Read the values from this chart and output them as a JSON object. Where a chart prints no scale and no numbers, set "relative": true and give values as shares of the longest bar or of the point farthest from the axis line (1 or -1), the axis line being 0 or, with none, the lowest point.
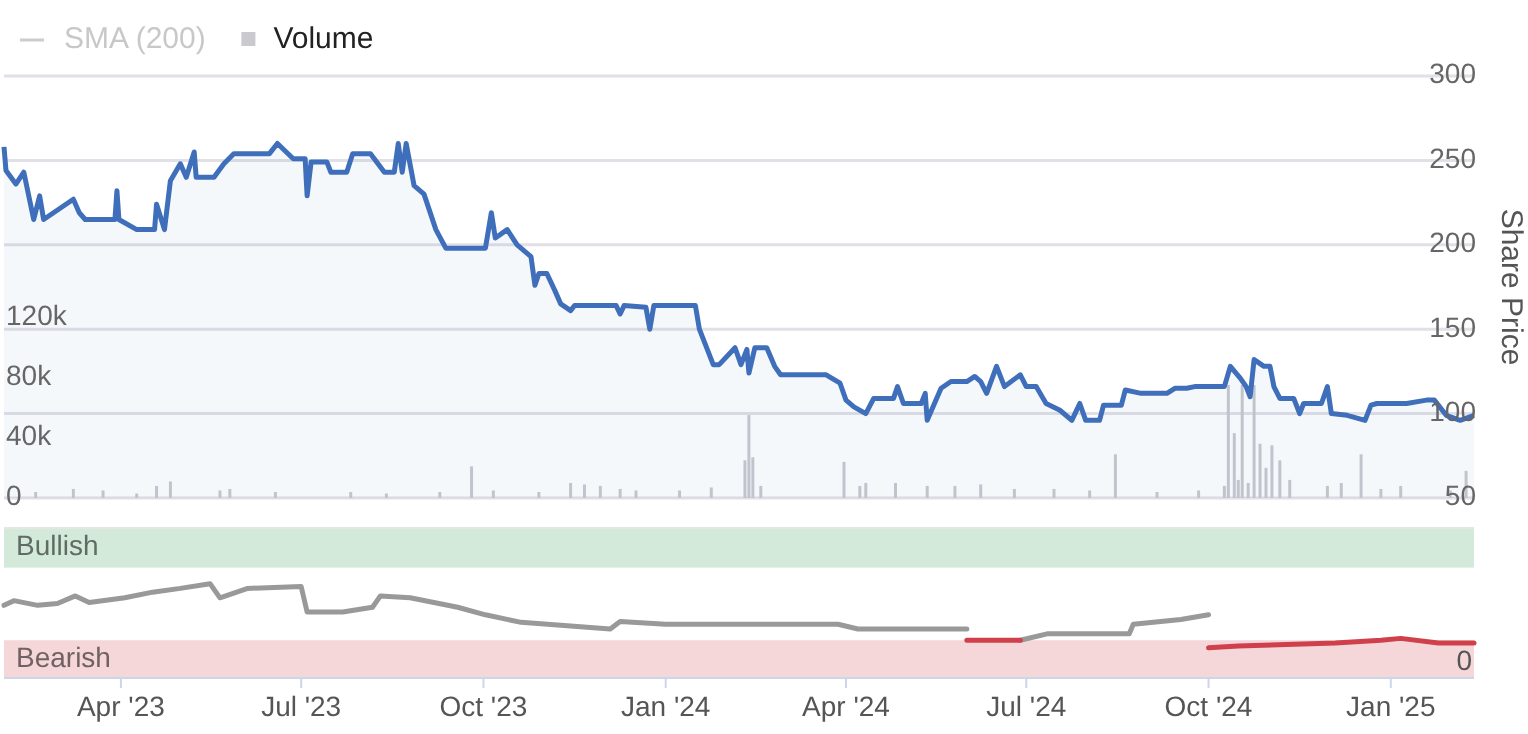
{
  "chart_data": [
    {
      "type": "area",
      "ylabel": "Share Price",
      "xlim": [
        "2023-02-01",
        "2025-02-12"
      ],
      "ylim": [
        50,
        300
      ],
      "yticks": [
        50,
        100,
        150,
        200,
        250,
        300
      ],
      "y2lim": [
        0,
        280000
      ],
      "y2ticks": [
        0,
        {
          "value": 40000,
          "label": "40k"
        },
        {
          "value": 80000,
          "label": "80k"
        },
        {
          "value": 120000,
          "label": "120k"
        }
      ],
      "grid": "y",
      "legend": "top left",
      "tick_labels": "y",
      "series": [
        {
          "name": "SMA (200)",
          "type": "line",
          "color": "#cccccc"
        },
        {
          "name": "Volume",
          "type": "bar",
          "axis": "y2",
          "color": "#c9c9cf",
          "x": [
            "2023-02-17",
            "2023-03-08",
            "2023-03-23",
            "2023-04-09",
            "2023-04-19",
            "2023-04-26",
            "2023-05-21",
            "2023-05-26",
            "2023-06-18",
            "2023-07-26",
            "2023-08-13",
            "2023-09-09",
            "2023-09-25",
            "2023-10-06",
            "2023-10-29",
            "2023-11-14",
            "2023-11-21",
            "2023-11-29",
            "2023-12-09",
            "2023-12-17",
            "2024-01-08",
            "2024-01-24",
            "2024-02-10",
            "2024-02-12",
            "2024-02-14",
            "2024-02-18",
            "2024-03-31",
            "2024-04-08",
            "2024-04-11",
            "2024-04-26",
            "2024-05-12",
            "2024-05-26",
            "2024-06-08",
            "2024-06-25",
            "2024-07-15",
            "2024-08-02",
            "2024-08-15",
            "2024-09-05",
            "2024-09-26",
            "2024-10-09",
            "2024-10-11",
            "2024-10-14",
            "2024-10-16",
            "2024-10-18",
            "2024-10-21",
            "2024-10-24",
            "2024-10-27",
            "2024-10-30",
            "2024-11-02",
            "2024-11-06",
            "2024-11-11",
            "2024-11-30",
            "2024-12-07",
            "2024-12-17",
            "2024-12-27",
            "2025-01-06",
            "2025-01-31",
            "2025-02-08"
          ],
          "values": [
            4000,
            6000,
            5000,
            3000,
            8000,
            11000,
            5000,
            6000,
            4000,
            4000,
            3000,
            4000,
            21000,
            5000,
            4000,
            10000,
            9000,
            8000,
            6000,
            5000,
            5000,
            7000,
            25000,
            55000,
            27000,
            8000,
            24000,
            8000,
            10000,
            10000,
            8000,
            8000,
            9000,
            6000,
            6000,
            5000,
            29000,
            4000,
            5000,
            8000,
            75000,
            43000,
            12000,
            75000,
            10000,
            75000,
            36000,
            20000,
            35000,
            25000,
            12000,
            8000,
            10000,
            29000,
            6000,
            8000,
            5000,
            18000
          ]
        },
        {
          "color": "#3f6fba",
          "x": [
            "2023-02-01",
            "2023-02-02",
            "2023-02-07",
            "2023-02-11",
            "2023-02-16",
            "2023-02-19",
            "2023-02-21",
            "2023-03-08",
            "2023-03-11",
            "2023-03-14",
            "2023-03-29",
            "2023-03-30",
            "2023-03-31",
            "2023-04-09",
            "2023-04-18",
            "2023-04-19",
            "2023-04-23",
            "2023-04-26",
            "2023-05-01",
            "2023-05-04",
            "2023-05-08",
            "2023-05-09",
            "2023-05-18",
            "2023-05-23",
            "2023-05-28",
            "2023-06-15",
            "2023-06-19",
            "2023-06-27",
            "2023-07-03",
            "2023-07-04",
            "2023-07-06",
            "2023-07-14",
            "2023-07-16",
            "2023-07-24",
            "2023-07-27",
            "2023-08-05",
            "2023-08-12",
            "2023-08-17",
            "2023-08-19",
            "2023-08-21",
            "2023-08-23",
            "2023-08-27",
            "2023-09-01",
            "2023-09-07",
            "2023-09-12",
            "2023-10-02",
            "2023-10-05",
            "2023-10-07",
            "2023-10-13",
            "2023-10-18",
            "2023-10-25",
            "2023-10-27",
            "2023-10-29",
            "2023-11-02",
            "2023-11-06",
            "2023-11-09",
            "2023-11-14",
            "2023-11-16",
            "2023-12-07",
            "2023-12-09",
            "2023-12-11",
            "2023-12-22",
            "2023-12-24",
            "2023-12-26",
            "2024-01-16",
            "2024-01-18",
            "2024-01-25",
            "2024-01-28",
            "2024-02-05",
            "2024-02-08",
            "2024-02-11",
            "2024-02-12",
            "2024-02-15",
            "2024-02-21",
            "2024-02-25",
            "2024-02-28",
            "2024-03-22",
            "2024-03-29",
            "2024-04-01",
            "2024-04-05",
            "2024-04-11",
            "2024-04-15",
            "2024-04-25",
            "2024-04-27",
            "2024-04-30",
            "2024-05-09",
            "2024-05-11",
            "2024-05-12",
            "2024-05-19",
            "2024-05-24",
            "2024-06-01",
            "2024-06-05",
            "2024-06-08",
            "2024-06-11",
            "2024-06-16",
            "2024-06-20",
            "2024-06-28",
            "2024-07-01",
            "2024-07-06",
            "2024-07-11",
            "2024-07-18",
            "2024-07-24",
            "2024-07-28",
            "2024-07-31",
            "2024-08-07",
            "2024-08-09",
            "2024-08-18",
            "2024-08-20",
            "2024-08-28",
            "2024-09-10",
            "2024-09-14",
            "2024-09-20",
            "2024-09-24",
            "2024-10-09",
            "2024-10-12",
            "2024-10-17",
            "2024-10-20",
            "2024-10-22",
            "2024-10-24",
            "2024-10-29",
            "2024-11-01",
            "2024-11-03",
            "2024-11-06",
            "2024-11-13",
            "2024-11-16",
            "2024-11-18",
            "2024-11-27",
            "2024-11-30",
            "2024-12-02",
            "2024-12-10",
            "2024-12-19",
            "2024-12-22",
            "2024-12-25",
            "2025-01-09",
            "2025-01-19",
            "2025-01-23",
            "2025-01-29",
            "2025-02-05",
            "2025-02-12"
          ],
          "values": [
            258,
            244,
            236,
            243,
            215,
            229,
            215,
            227,
            219,
            215,
            215,
            232,
            215,
            209,
            209,
            224,
            209,
            238,
            248,
            240,
            255,
            240,
            240,
            248,
            254,
            254,
            260,
            251,
            251,
            229,
            249,
            249,
            243,
            243,
            254,
            254,
            243,
            243,
            260,
            243,
            260,
            235,
            230,
            209,
            198,
            198,
            219,
            204,
            209,
            200,
            193,
            176,
            183,
            183,
            173,
            165,
            161,
            164,
            164,
            159,
            164,
            163,
            150,
            164,
            164,
            150,
            129,
            129,
            139,
            129,
            138,
            124,
            139,
            139,
            128,
            123,
            123,
            118,
            108,
            104,
            100,
            109,
            109,
            116,
            106,
            106,
            112,
            96,
            115,
            119,
            119,
            122,
            119,
            112,
            128,
            116,
            123,
            116,
            116,
            106,
            102,
            96,
            106,
            96,
            96,
            105,
            105,
            114,
            112,
            112,
            115,
            115,
            116,
            116,
            128,
            121,
            116,
            110,
            132,
            128,
            128,
            116,
            109,
            109,
            100,
            106,
            106,
            116,
            100,
            99,
            96,
            105,
            106,
            106,
            108,
            108,
            99,
            96,
            99
          ]
        }
      ]
    },
    {
      "type": "line",
      "relative": true,
      "xlim": [
        "2023-02-01",
        "2025-02-12"
      ],
      "xticks": [
        {
          "value": "2023-04-01",
          "label": "Apr '23"
        },
        {
          "value": "2023-07-01",
          "label": "Jul '23"
        },
        {
          "value": "2023-10-01",
          "label": "Oct '23"
        },
        {
          "value": "2024-01-01",
          "label": "Jan '24"
        },
        {
          "value": "2024-04-01",
          "label": "Apr '24"
        },
        {
          "value": "2024-07-01",
          "label": "Jul '24"
        },
        {
          "value": "2024-10-01",
          "label": "Oct '24"
        },
        {
          "value": "2025-01-01",
          "label": "Jan '25"
        }
      ],
      "tick_labels": "x",
      "annotations": [
        "0"
      ],
      "bands": [
        {
          "axis": "y",
          "from": 1.17,
          "to": 1.59,
          "label": "Bullish",
          "color": "#d3eadb"
        },
        {
          "axis": "y",
          "from": 0,
          "to": 0.4,
          "label": "Bearish",
          "color": "#f5d6d9"
        }
      ],
      "series": [
        {
          "color": "#999999",
          "x": [
            "2023-02-01",
            "2023-02-06",
            "2023-02-18",
            "2023-02-28",
            "2023-03-09",
            "2023-03-16",
            "2023-04-03",
            "2023-04-17",
            "2023-05-01",
            "2023-05-16",
            "2023-05-21",
            "2023-06-04",
            "2023-07-01",
            "2023-07-04",
            "2023-07-22",
            "2023-08-06",
            "2023-08-10",
            "2023-08-25",
            "2023-09-18",
            "2023-10-02",
            "2023-10-20",
            "2023-12-04",
            "2023-12-09",
            "2024-01-01",
            "2024-01-31",
            "2024-03-28",
            "2024-04-07",
            "2024-06-01",
            "2024-06-15",
            "2024-06-28",
            "2024-07-12",
            "2024-08-22",
            "2024-08-24",
            "2024-09-17",
            "2024-10-01"
          ],
          "values": [
            0.77,
            0.82,
            0.77,
            0.79,
            0.87,
            0.8,
            0.85,
            0.91,
            0.95,
            1,
            0.85,
            0.95,
            0.97,
            0.7,
            0.7,
            0.75,
            0.87,
            0.85,
            0.75,
            0.67,
            0.59,
            0.52,
            0.6,
            0.57,
            0.57,
            0.57,
            0.52,
            0.52,
            null,
            0.4,
            0.47,
            0.47,
            0.57,
            0.62,
            0.67
          ]
        },
        {
          "color": "#d0404a",
          "x": [
            "2024-06-01",
            "2024-06-28",
            "2024-08-01",
            "2024-10-01",
            "2024-10-16",
            "2024-12-04",
            "2024-12-27",
            "2025-01-06",
            "2025-01-25",
            "2025-02-12"
          ],
          "values": [
            0.4,
            0.4,
            null,
            0.32,
            0.34,
            0.37,
            0.4,
            0.42,
            0.37,
            0.37
          ]
        }
      ]
    }
  ]
}
